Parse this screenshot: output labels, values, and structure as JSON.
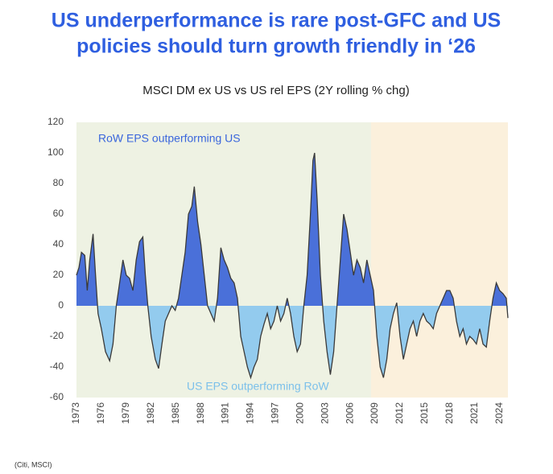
{
  "chart_data": {
    "type": "area",
    "title_lines": [
      "US underperformance is rare post-GFC and US",
      "policies should turn growth friendly in ‘26"
    ],
    "subtitle": "MSCI DM ex US vs US rel EPS (2Y rolling % chg)",
    "annotations": [
      "RoW EPS outperforming US",
      "US EPS outperforming RoW"
    ],
    "source": "(Citi, MSCI)",
    "xlim": [
      1973,
      2025
    ],
    "xticks": [
      1973,
      1976,
      1979,
      1982,
      1985,
      1988,
      1991,
      1994,
      1997,
      2000,
      2003,
      2006,
      2009,
      2012,
      2015,
      2018,
      2021,
      2024
    ],
    "ylim": [
      -60,
      120
    ],
    "yticks": [
      -60,
      -40,
      -20,
      0,
      20,
      40,
      60,
      80,
      100,
      120
    ],
    "color_positive": "#4a70d9",
    "color_negative": "#93cbee",
    "line_color": "#3a3a3a",
    "shaded_regions": [
      {
        "span": [
          1973,
          2008.5
        ],
        "color": "#eef2e3"
      },
      {
        "span": [
          2008.5,
          2025
        ],
        "color": "#fbf0dc"
      }
    ],
    "x": [
      1973.0,
      1973.3,
      1973.6,
      1974.0,
      1974.3,
      1974.6,
      1975.0,
      1975.3,
      1975.6,
      1976.0,
      1976.5,
      1977.0,
      1977.4,
      1977.8,
      1978.2,
      1978.6,
      1979.0,
      1979.4,
      1979.8,
      1980.2,
      1980.6,
      1981.0,
      1981.3,
      1981.6,
      1982.0,
      1982.5,
      1982.9,
      1983.3,
      1983.7,
      1984.1,
      1984.5,
      1984.9,
      1985.3,
      1985.7,
      1986.1,
      1986.5,
      1986.9,
      1987.2,
      1987.6,
      1988.0,
      1988.4,
      1988.8,
      1989.2,
      1989.6,
      1990.0,
      1990.4,
      1990.8,
      1991.2,
      1991.6,
      1992.0,
      1992.4,
      1992.8,
      1993.2,
      1993.6,
      1994.0,
      1994.4,
      1994.8,
      1995.2,
      1995.6,
      1996.0,
      1996.4,
      1996.8,
      1997.2,
      1997.6,
      1998.0,
      1998.4,
      1998.8,
      1999.2,
      1999.6,
      2000.0,
      2000.4,
      2000.8,
      2001.2,
      2001.5,
      2001.7,
      2002.0,
      2002.4,
      2002.8,
      2003.2,
      2003.6,
      2004.0,
      2004.4,
      2004.8,
      2005.2,
      2005.6,
      2006.0,
      2006.4,
      2006.8,
      2007.2,
      2007.6,
      2008.0,
      2008.4,
      2008.8,
      2009.2,
      2009.6,
      2010.0,
      2010.4,
      2010.8,
      2011.2,
      2011.6,
      2012.0,
      2012.4,
      2012.8,
      2013.2,
      2013.6,
      2014.0,
      2014.4,
      2014.8,
      2015.2,
      2015.6,
      2016.0,
      2016.4,
      2016.8,
      2017.2,
      2017.6,
      2018.0,
      2018.4,
      2018.8,
      2019.2,
      2019.6,
      2020.0,
      2020.4,
      2020.8,
      2021.2,
      2021.6,
      2022.0,
      2022.4,
      2022.8,
      2023.2,
      2023.6,
      2024.0,
      2024.4,
      2024.8,
      2025.0
    ],
    "values": [
      20,
      25,
      35,
      33,
      10,
      30,
      47,
      20,
      -5,
      -15,
      -30,
      -36,
      -25,
      0,
      15,
      30,
      20,
      18,
      10,
      30,
      42,
      45,
      20,
      0,
      -20,
      -35,
      -41,
      -25,
      -10,
      -5,
      0,
      -3,
      5,
      20,
      35,
      60,
      65,
      78,
      55,
      40,
      20,
      0,
      -5,
      -10,
      5,
      38,
      30,
      25,
      18,
      15,
      5,
      -20,
      -30,
      -40,
      -47,
      -40,
      -35,
      -20,
      -12,
      -5,
      -15,
      -10,
      0,
      -10,
      -5,
      5,
      -5,
      -20,
      -30,
      -25,
      0,
      20,
      60,
      95,
      100,
      70,
      20,
      -10,
      -30,
      -45,
      -30,
      0,
      30,
      60,
      50,
      35,
      20,
      30,
      25,
      15,
      30,
      20,
      10,
      -20,
      -40,
      -47,
      -35,
      -15,
      -5,
      2,
      -20,
      -35,
      -25,
      -15,
      -10,
      -20,
      -10,
      -5,
      -10,
      -12,
      -15,
      -5,
      0,
      5,
      10,
      10,
      5,
      -10,
      -20,
      -15,
      -25,
      -20,
      -22,
      -25,
      -15,
      -25,
      -27,
      -10,
      5,
      15,
      10,
      8,
      5,
      -8
    ]
  }
}
